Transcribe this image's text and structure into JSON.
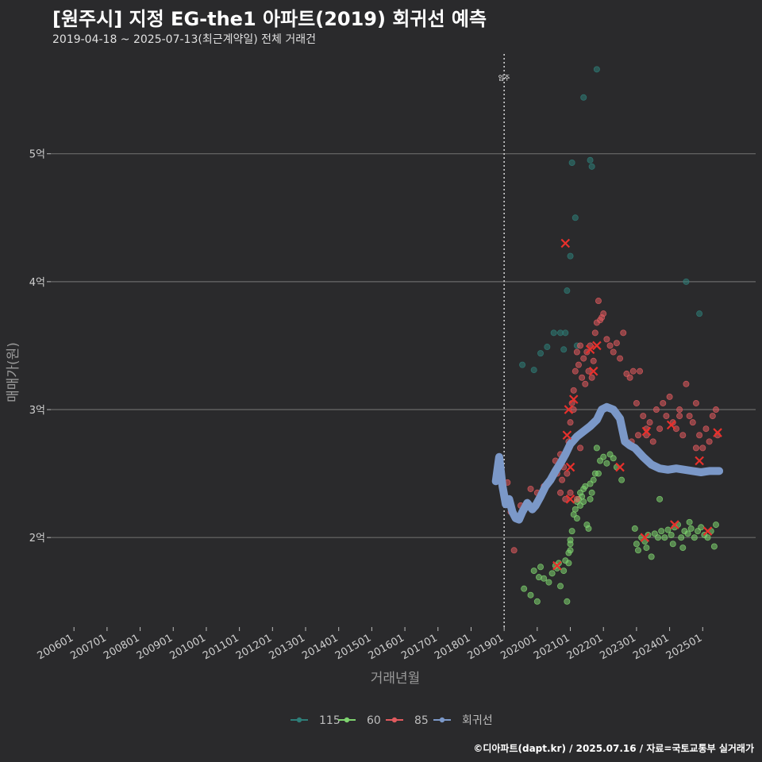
{
  "header": {
    "title": "[원주시] 지정 EG-the1 아파트(2019) 회귀선 예측",
    "subtitle": "2019-04-18 ~ 2025-07-13(최근계약일) 전체 거래건"
  },
  "footer": {
    "caption": "©디아파트(dapt.kr) / 2025.07.16 / 자료=국토교통부 실거래가"
  },
  "colors": {
    "background": "#2a2a2c",
    "s115": "#2e7d78",
    "s60": "#7ed36f",
    "s85": "#e05a5e",
    "regression": "#7b98c8",
    "grid": "#6a6a6a",
    "highlight": "#e8302c"
  },
  "chart_data": {
    "type": "scatter",
    "title": "[원주시] 지정 EG-the1 아파트(2019) 회귀선 예측",
    "xlabel": "거래년월",
    "ylabel": "매매가(원)",
    "x_ticks": [
      "200601",
      "200701",
      "200801",
      "200901",
      "201001",
      "201101",
      "201201",
      "201301",
      "201401",
      "201501",
      "201601",
      "201701",
      "201801",
      "201901",
      "202001",
      "202101",
      "202201",
      "202301",
      "202401",
      "202501"
    ],
    "y_ticks": [
      {
        "value": 2,
        "label": "2억"
      },
      {
        "value": 3,
        "label": "3억"
      },
      {
        "value": 4,
        "label": "4억"
      },
      {
        "value": 5,
        "label": "5억"
      }
    ],
    "xlim": [
      2005.3,
      2026.6
    ],
    "ylim": [
      1.3,
      5.78
    ],
    "y_unit": "억",
    "grid": "horizontal",
    "legend_position": "bottom",
    "annotation": {
      "label": "입주",
      "x": 2019.0
    },
    "series": [
      {
        "name": "115",
        "color_key": "s115",
        "points": [
          [
            2019.55,
            3.35
          ],
          [
            2019.9,
            3.31
          ],
          [
            2020.1,
            3.44
          ],
          [
            2020.3,
            3.49
          ],
          [
            2020.5,
            3.6
          ],
          [
            2020.7,
            3.6
          ],
          [
            2020.8,
            3.47
          ],
          [
            2020.85,
            3.6
          ],
          [
            2020.9,
            3.93
          ],
          [
            2021.0,
            4.2
          ],
          [
            2021.15,
            4.5
          ],
          [
            2021.4,
            5.44
          ],
          [
            2021.6,
            4.95
          ],
          [
            2021.65,
            4.9
          ],
          [
            2021.8,
            5.66
          ],
          [
            2021.05,
            4.93
          ],
          [
            2024.5,
            4.0
          ],
          [
            2024.9,
            3.75
          ],
          [
            2021.2,
            3.5
          ]
        ]
      },
      {
        "name": "60",
        "color_key": "s60",
        "points": [
          [
            2019.6,
            1.6
          ],
          [
            2019.8,
            1.55
          ],
          [
            2019.9,
            1.74
          ],
          [
            2020.0,
            1.5
          ],
          [
            2020.05,
            1.69
          ],
          [
            2020.1,
            1.77
          ],
          [
            2020.2,
            1.68
          ],
          [
            2020.35,
            1.65
          ],
          [
            2020.45,
            1.72
          ],
          [
            2020.55,
            1.78
          ],
          [
            2020.6,
            1.76
          ],
          [
            2020.65,
            1.8
          ],
          [
            2020.7,
            1.62
          ],
          [
            2020.8,
            1.74
          ],
          [
            2020.85,
            1.82
          ],
          [
            2020.9,
            1.5
          ],
          [
            2020.95,
            1.88
          ],
          [
            2020.95,
            1.8
          ],
          [
            2021.0,
            1.95
          ],
          [
            2021.0,
            1.9
          ],
          [
            2021.05,
            2.05
          ],
          [
            2021.1,
            2.18
          ],
          [
            2021.15,
            2.22
          ],
          [
            2021.2,
            2.28
          ],
          [
            2021.25,
            2.3
          ],
          [
            2021.3,
            2.35
          ],
          [
            2021.35,
            2.32
          ],
          [
            2021.4,
            2.38
          ],
          [
            2021.45,
            2.4
          ],
          [
            2021.5,
            2.1
          ],
          [
            2021.55,
            2.07
          ],
          [
            2021.6,
            2.42
          ],
          [
            2021.65,
            2.35
          ],
          [
            2021.7,
            2.45
          ],
          [
            2021.75,
            2.5
          ],
          [
            2021.85,
            2.5
          ],
          [
            2021.9,
            2.6
          ],
          [
            2022.0,
            2.63
          ],
          [
            2022.1,
            2.58
          ],
          [
            2022.2,
            2.65
          ],
          [
            2022.3,
            2.62
          ],
          [
            2022.4,
            2.55
          ],
          [
            2022.55,
            2.45
          ],
          [
            2021.8,
            2.7
          ],
          [
            2021.3,
            2.25
          ],
          [
            2021.2,
            2.15
          ],
          [
            2021.4,
            2.28
          ],
          [
            2021.6,
            2.3
          ],
          [
            2021.0,
            1.98
          ],
          [
            2022.95,
            2.07
          ],
          [
            2023.0,
            1.95
          ],
          [
            2023.05,
            1.9
          ],
          [
            2023.15,
            2.0
          ],
          [
            2023.25,
            1.97
          ],
          [
            2023.35,
            2.02
          ],
          [
            2023.45,
            1.85
          ],
          [
            2023.55,
            2.03
          ],
          [
            2023.65,
            2.0
          ],
          [
            2023.75,
            2.05
          ],
          [
            2023.85,
            2.0
          ],
          [
            2023.95,
            2.06
          ],
          [
            2024.05,
            2.02
          ],
          [
            2024.15,
            2.08
          ],
          [
            2024.25,
            2.1
          ],
          [
            2024.35,
            2.0
          ],
          [
            2024.45,
            2.05
          ],
          [
            2024.55,
            2.03
          ],
          [
            2024.65,
            2.07
          ],
          [
            2024.75,
            2.0
          ],
          [
            2024.85,
            2.05
          ],
          [
            2024.95,
            2.08
          ],
          [
            2025.05,
            2.02
          ],
          [
            2025.15,
            2.0
          ],
          [
            2025.25,
            2.05
          ],
          [
            2025.35,
            1.93
          ],
          [
            2025.4,
            2.1
          ],
          [
            2023.7,
            2.3
          ],
          [
            2024.1,
            1.95
          ],
          [
            2024.6,
            2.12
          ],
          [
            2024.4,
            1.92
          ],
          [
            2023.3,
            1.92
          ]
        ]
      },
      {
        "name": "85",
        "color_key": "s85",
        "points": [
          [
            2019.1,
            2.43
          ],
          [
            2019.2,
            2.2
          ],
          [
            2019.3,
            1.9
          ],
          [
            2019.5,
            2.25
          ],
          [
            2019.8,
            2.38
          ],
          [
            2020.0,
            2.35
          ],
          [
            2020.2,
            2.4
          ],
          [
            2020.4,
            2.45
          ],
          [
            2020.55,
            2.6
          ],
          [
            2020.6,
            2.5
          ],
          [
            2020.7,
            2.65
          ],
          [
            2020.75,
            2.45
          ],
          [
            2020.8,
            2.55
          ],
          [
            2020.85,
            2.3
          ],
          [
            2020.9,
            2.5
          ],
          [
            2020.95,
            2.75
          ],
          [
            2021.0,
            2.9
          ],
          [
            2021.05,
            3.05
          ],
          [
            2021.1,
            3.15
          ],
          [
            2021.15,
            3.3
          ],
          [
            2021.2,
            3.45
          ],
          [
            2021.25,
            3.35
          ],
          [
            2021.3,
            3.5
          ],
          [
            2021.35,
            3.25
          ],
          [
            2021.4,
            3.4
          ],
          [
            2021.45,
            3.2
          ],
          [
            2021.5,
            3.45
          ],
          [
            2021.55,
            3.3
          ],
          [
            2021.6,
            3.5
          ],
          [
            2021.65,
            3.25
          ],
          [
            2021.7,
            3.38
          ],
          [
            2021.75,
            3.6
          ],
          [
            2021.8,
            3.68
          ],
          [
            2021.85,
            3.85
          ],
          [
            2021.9,
            3.7
          ],
          [
            2021.95,
            3.72
          ],
          [
            2022.0,
            3.75
          ],
          [
            2022.1,
            3.55
          ],
          [
            2022.2,
            3.5
          ],
          [
            2022.3,
            3.45
          ],
          [
            2022.4,
            3.52
          ],
          [
            2022.5,
            3.4
          ],
          [
            2022.6,
            3.6
          ],
          [
            2022.7,
            3.28
          ],
          [
            2022.8,
            3.25
          ],
          [
            2022.9,
            3.3
          ],
          [
            2023.0,
            3.05
          ],
          [
            2023.1,
            3.3
          ],
          [
            2023.2,
            2.95
          ],
          [
            2023.3,
            2.85
          ],
          [
            2023.4,
            2.9
          ],
          [
            2023.5,
            2.75
          ],
          [
            2023.6,
            3.0
          ],
          [
            2023.7,
            2.85
          ],
          [
            2023.8,
            3.05
          ],
          [
            2023.9,
            2.95
          ],
          [
            2024.0,
            3.1
          ],
          [
            2024.1,
            2.9
          ],
          [
            2024.2,
            2.85
          ],
          [
            2024.3,
            3.0
          ],
          [
            2024.4,
            2.8
          ],
          [
            2024.5,
            3.2
          ],
          [
            2024.6,
            2.95
          ],
          [
            2024.7,
            2.9
          ],
          [
            2024.8,
            3.05
          ],
          [
            2024.9,
            2.8
          ],
          [
            2025.0,
            2.7
          ],
          [
            2025.1,
            2.85
          ],
          [
            2025.2,
            2.75
          ],
          [
            2025.3,
            2.95
          ],
          [
            2025.4,
            3.0
          ],
          [
            2025.45,
            2.8
          ],
          [
            2021.1,
            3.0
          ],
          [
            2021.3,
            2.7
          ],
          [
            2022.85,
            2.75
          ],
          [
            2023.05,
            2.8
          ],
          [
            2023.3,
            2.8
          ],
          [
            2024.3,
            2.95
          ],
          [
            2024.8,
            2.7
          ],
          [
            2021.0,
            2.35
          ],
          [
            2021.2,
            2.3
          ],
          [
            2020.7,
            2.35
          ]
        ]
      },
      {
        "name": "회귀선",
        "color_key": "regression",
        "line": [
          [
            2018.75,
            2.44
          ],
          [
            2018.85,
            2.63
          ],
          [
            2018.95,
            2.4
          ],
          [
            2019.05,
            2.26
          ],
          [
            2019.15,
            2.3
          ],
          [
            2019.25,
            2.2
          ],
          [
            2019.35,
            2.15
          ],
          [
            2019.45,
            2.14
          ],
          [
            2019.55,
            2.2
          ],
          [
            2019.7,
            2.27
          ],
          [
            2019.85,
            2.22
          ],
          [
            2019.95,
            2.25
          ],
          [
            2020.1,
            2.32
          ],
          [
            2020.25,
            2.4
          ],
          [
            2020.4,
            2.45
          ],
          [
            2020.55,
            2.52
          ],
          [
            2020.7,
            2.58
          ],
          [
            2020.85,
            2.65
          ],
          [
            2021.0,
            2.73
          ],
          [
            2021.2,
            2.79
          ],
          [
            2021.4,
            2.83
          ],
          [
            2021.6,
            2.87
          ],
          [
            2021.8,
            2.92
          ],
          [
            2021.95,
            3.0
          ],
          [
            2022.1,
            3.02
          ],
          [
            2022.3,
            3.0
          ],
          [
            2022.5,
            2.93
          ],
          [
            2022.65,
            2.75
          ],
          [
            2022.8,
            2.72
          ],
          [
            2022.95,
            2.7
          ],
          [
            2023.2,
            2.63
          ],
          [
            2023.45,
            2.57
          ],
          [
            2023.7,
            2.54
          ],
          [
            2023.95,
            2.53
          ],
          [
            2024.2,
            2.54
          ],
          [
            2024.45,
            2.53
          ],
          [
            2024.7,
            2.52
          ],
          [
            2024.95,
            2.51
          ],
          [
            2025.2,
            2.52
          ],
          [
            2025.5,
            2.52
          ]
        ]
      }
    ],
    "highlighted": [
      [
        2020.85,
        4.3
      ],
      [
        2020.95,
        3.0
      ],
      [
        2020.9,
        2.8
      ],
      [
        2021.0,
        2.3
      ],
      [
        2020.6,
        1.78
      ],
      [
        2021.0,
        2.55
      ],
      [
        2021.1,
        3.08
      ],
      [
        2021.6,
        3.47
      ],
      [
        2021.7,
        3.3
      ],
      [
        2021.8,
        3.5
      ],
      [
        2022.5,
        2.55
      ],
      [
        2023.25,
        2.0
      ],
      [
        2023.3,
        2.83
      ],
      [
        2024.05,
        2.88
      ],
      [
        2024.15,
        2.1
      ],
      [
        2024.9,
        2.6
      ],
      [
        2025.15,
        2.05
      ],
      [
        2025.45,
        2.82
      ]
    ]
  },
  "legend": [
    {
      "label": "115",
      "color_key": "s115"
    },
    {
      "label": "60",
      "color_key": "s60"
    },
    {
      "label": "85",
      "color_key": "s85"
    },
    {
      "label": "회귀선",
      "color_key": "regression"
    }
  ]
}
